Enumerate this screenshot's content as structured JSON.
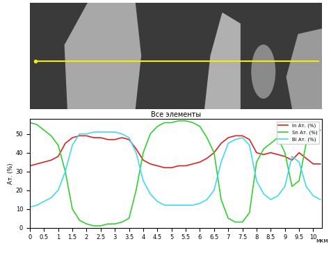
{
  "chart_data": {
    "type": "line",
    "title": "Все элементы",
    "x_label": "мкм",
    "y_label": "Ат. (%)",
    "x": [
      0,
      0.25,
      0.5,
      0.75,
      1,
      1.25,
      1.5,
      1.75,
      2,
      2.25,
      2.5,
      2.75,
      3,
      3.25,
      3.5,
      3.75,
      4,
      4.25,
      4.5,
      4.75,
      5,
      5.25,
      5.5,
      5.75,
      6,
      6.25,
      6.5,
      6.75,
      7,
      7.25,
      7.5,
      7.75,
      8,
      8.25,
      8.5,
      8.75,
      9,
      9.25,
      9.5,
      9.75,
      10,
      10.25
    ],
    "series": [
      {
        "name": "In Ат. (%)",
        "color": "#e02020",
        "values": [
          33,
          34,
          35,
          36,
          38,
          45,
          48,
          49,
          49,
          48,
          48,
          47,
          47,
          48,
          47,
          42,
          36,
          34,
          33,
          32,
          32,
          33,
          33,
          34,
          35,
          37,
          40,
          45,
          48,
          49,
          49,
          47,
          40,
          39,
          40,
          39,
          38,
          36,
          40,
          37,
          34,
          34
        ]
      },
      {
        "name": "Sn Ат. (%)",
        "color": "#30d030",
        "values": [
          56,
          55,
          52,
          49,
          44,
          30,
          10,
          4,
          2,
          1,
          1,
          2,
          2,
          3,
          5,
          20,
          40,
          50,
          54,
          56,
          56,
          57,
          57,
          56,
          54,
          48,
          40,
          15,
          5,
          3,
          3,
          8,
          35,
          42,
          45,
          48,
          40,
          22,
          25,
          45,
          50,
          52
        ]
      },
      {
        "name": "Bi Ат. (%)",
        "color": "#40d8f0",
        "values": [
          11,
          12,
          14,
          16,
          20,
          30,
          44,
          50,
          50,
          51,
          51,
          51,
          51,
          50,
          48,
          40,
          25,
          18,
          14,
          12,
          12,
          12,
          12,
          12,
          13,
          15,
          20,
          35,
          45,
          47,
          48,
          44,
          25,
          18,
          15,
          17,
          22,
          38,
          35,
          22,
          17,
          15
        ]
      }
    ],
    "xlim": [
      0,
      10.3
    ],
    "xticks": [
      0,
      0.5,
      1,
      1.5,
      2,
      2.5,
      3,
      3.5,
      4,
      4.5,
      5,
      5.5,
      6,
      6.5,
      7,
      7.5,
      8,
      8.5,
      9,
      9.5,
      10
    ],
    "ylim": [
      0,
      58
    ],
    "yticks": [
      0,
      10,
      20,
      30,
      40,
      50
    ],
    "grid": false,
    "legend": "upper right"
  }
}
